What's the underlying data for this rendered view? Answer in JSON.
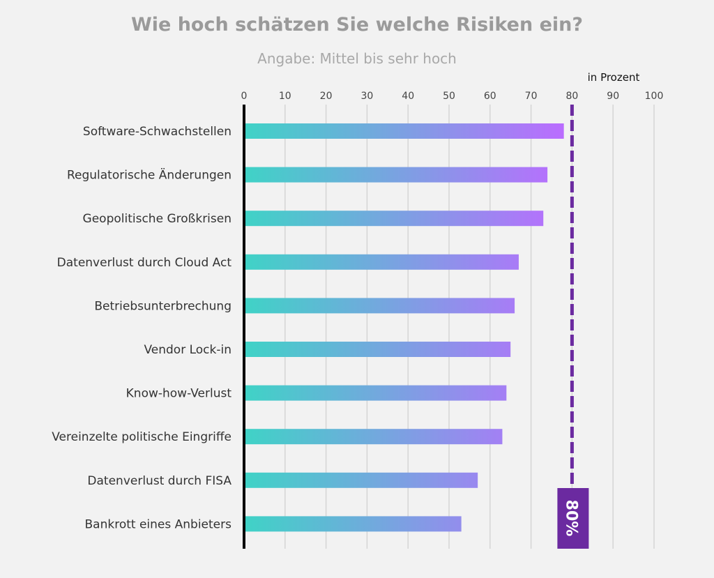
{
  "chart_data": {
    "type": "bar",
    "orientation": "horizontal",
    "title": "Wie hoch schätzen Sie welche Risiken ein?",
    "subtitle": "Angabe: Mittel bis sehr hoch",
    "unit_label": "in Prozent",
    "categories": [
      "Software-Schwachstellen",
      "Regulatorische Änderungen",
      "Geopolitische Großkrisen",
      "Datenverlust durch Cloud Act",
      "Betriebsunterbrechung",
      "Vendor Lock-in",
      "Know-how-Verlust",
      "Vereinzelte politische Eingriffe",
      "Datenverlust durch FISA",
      "Bankrott eines Anbieters"
    ],
    "values": [
      78,
      74,
      73,
      67,
      66,
      65,
      64,
      63,
      57,
      53
    ],
    "xlim": [
      0,
      100
    ],
    "xticks": [
      "0",
      "10",
      "20",
      "30",
      "40",
      "50",
      "60",
      "70",
      "80",
      "90",
      "100"
    ],
    "grid": true,
    "reference_line": {
      "value": 80,
      "label": "80%",
      "color": "#6b2aa0",
      "style": "dashed"
    },
    "bar_gradient": [
      "#3fd3c6",
      "#bb6cff"
    ],
    "axis_color": "#000000"
  }
}
